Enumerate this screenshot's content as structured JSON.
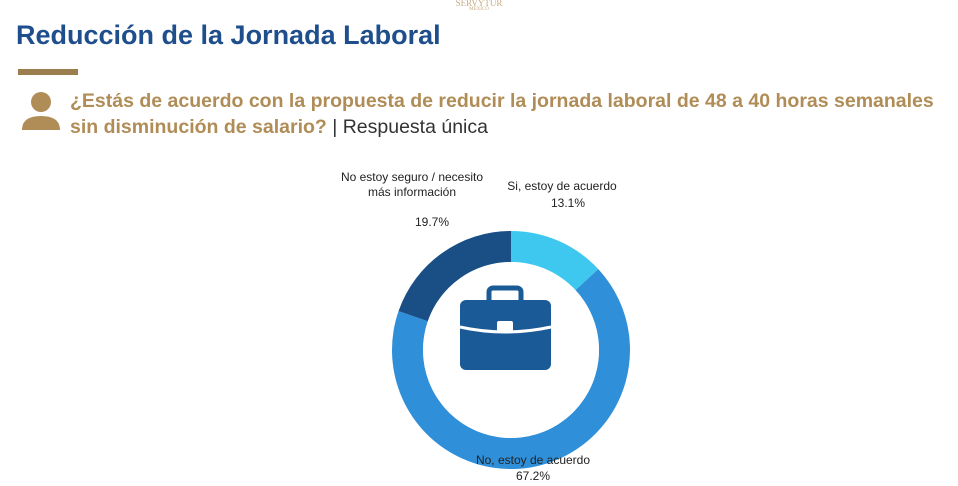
{
  "chart_data": {
    "type": "pie",
    "donut": true,
    "brand": "SERVYTUR",
    "brand_sub": "MÉXICO",
    "title": "Reducción de la Jornada Laboral",
    "subtitle": "¿Estás de acuerdo con la propuesta de reducir la jornada laboral de 48 a 40 horas semanales sin disminución de salario?",
    "note": "| Respuesta única",
    "categories": [
      "Si, estoy de acuerdo",
      "No, estoy de acuerdo",
      "No estoy seguro / necesito más información"
    ],
    "values": [
      13.1,
      67.2,
      19.7
    ],
    "value_labels": [
      "13.1%",
      "67.2%",
      "19.7%"
    ],
    "colors": [
      "#3ec8f0",
      "#2f8fd8",
      "#1a4f86"
    ]
  }
}
